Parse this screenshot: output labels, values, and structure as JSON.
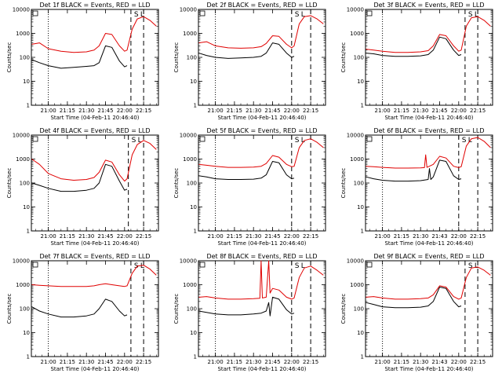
{
  "figure": {
    "xlabel": "Start Time (04-Feb-11 20:46:40)",
    "ylabel": "Counts/sec",
    "series_note": "BLACK = Events, RED = LLD",
    "x_ticks": [
      "21:00",
      "21:15",
      "21:30",
      "21:45",
      "22:00",
      "22:15"
    ],
    "x_ticks_alt": [
      "21:00",
      "21:15",
      "21:30",
      "21:43",
      "22:00",
      "22:15"
    ],
    "y_ticks": [
      "1",
      "10",
      "100",
      "1000",
      "10000"
    ],
    "marker_left": "S",
    "marker_right": "L",
    "colors": {
      "events": "#000000",
      "lld": "#e00000"
    }
  },
  "chart_data": [
    {
      "type": "line",
      "title": "Det 1f BLACK = Events, RED = LLD",
      "log_y": true,
      "ylim": [
        1,
        10000
      ],
      "vlines": {
        "dotted": "21:00",
        "dashed": [
          "22:05",
          "22:15"
        ]
      },
      "series": [
        {
          "name": "Events",
          "color": "#000000",
          "x": [
            "20:47",
            "20:53",
            "21:00",
            "21:10",
            "21:20",
            "21:30",
            "21:36",
            "21:40",
            "21:45",
            "21:50",
            "21:56",
            "22:00",
            "22:02"
          ],
          "y": [
            80,
            60,
            45,
            35,
            38,
            42,
            45,
            60,
            300,
            260,
            70,
            40,
            45
          ]
        },
        {
          "name": "LLD",
          "color": "#e00000",
          "x": [
            "20:47",
            "20:53",
            "21:00",
            "21:10",
            "21:20",
            "21:30",
            "21:36",
            "21:40",
            "21:45",
            "21:50",
            "21:56",
            "22:00",
            "22:02",
            "22:06",
            "22:10",
            "22:15",
            "22:20",
            "22:25"
          ],
          "y": [
            350,
            400,
            230,
            180,
            160,
            170,
            200,
            300,
            1000,
            900,
            300,
            180,
            200,
            1500,
            4000,
            5000,
            3500,
            2000
          ]
        }
      ]
    },
    {
      "type": "line",
      "title": "Det 2f BLACK = Events, RED = LLD",
      "log_y": true,
      "ylim": [
        1,
        10000
      ],
      "vlines": {
        "dotted": "21:00",
        "dashed": [
          "22:00",
          "22:15"
        ]
      },
      "series": [
        {
          "name": "Events",
          "color": "#000000",
          "x": [
            "20:47",
            "20:53",
            "21:00",
            "21:10",
            "21:20",
            "21:30",
            "21:36",
            "21:40",
            "21:45",
            "21:50",
            "21:56",
            "22:00",
            "22:02"
          ],
          "y": [
            150,
            120,
            100,
            90,
            95,
            100,
            110,
            150,
            400,
            350,
            150,
            100,
            110
          ]
        },
        {
          "name": "LLD",
          "color": "#e00000",
          "x": [
            "20:47",
            "20:53",
            "21:00",
            "21:10",
            "21:20",
            "21:30",
            "21:36",
            "21:40",
            "21:45",
            "21:50",
            "21:56",
            "22:00",
            "22:02",
            "22:06",
            "22:10",
            "22:15",
            "22:20",
            "22:25"
          ],
          "y": [
            400,
            450,
            300,
            250,
            240,
            250,
            280,
            380,
            800,
            750,
            350,
            250,
            300,
            2500,
            5000,
            5500,
            4000,
            2500
          ]
        }
      ]
    },
    {
      "type": "line",
      "title": "Det 3f BLACK = Events, RED = LLD",
      "log_y": true,
      "ylim": [
        1,
        10000
      ],
      "vlines": {
        "dotted": "21:00",
        "dashed": [
          "22:05",
          "22:15"
        ]
      },
      "series": [
        {
          "name": "Events",
          "color": "#000000",
          "x": [
            "20:47",
            "20:53",
            "21:00",
            "21:10",
            "21:20",
            "21:30",
            "21:36",
            "21:40",
            "21:45",
            "21:50",
            "21:56",
            "22:00",
            "22:02"
          ],
          "y": [
            150,
            140,
            120,
            110,
            110,
            115,
            130,
            200,
            700,
            600,
            200,
            120,
            130
          ]
        },
        {
          "name": "LLD",
          "color": "#e00000",
          "x": [
            "20:47",
            "20:53",
            "21:00",
            "21:10",
            "21:20",
            "21:30",
            "21:36",
            "21:40",
            "21:45",
            "21:50",
            "21:56",
            "22:00",
            "22:02",
            "22:06",
            "22:10",
            "22:15",
            "22:20",
            "22:25"
          ],
          "y": [
            220,
            200,
            180,
            160,
            160,
            170,
            190,
            300,
            900,
            800,
            300,
            180,
            200,
            2000,
            4500,
            5000,
            3500,
            2000
          ]
        }
      ]
    },
    {
      "type": "line",
      "title": "Det 4f BLACK = Events, RED = LLD",
      "log_y": true,
      "ylim": [
        1,
        10000
      ],
      "vlines": {
        "dotted": "21:00",
        "dashed": [
          "22:03",
          "22:15"
        ]
      },
      "series": [
        {
          "name": "Events",
          "color": "#000000",
          "x": [
            "20:47",
            "20:53",
            "21:00",
            "21:10",
            "21:20",
            "21:30",
            "21:36",
            "21:40",
            "21:45",
            "21:50",
            "21:56",
            "22:00",
            "22:02"
          ],
          "y": [
            100,
            80,
            60,
            45,
            45,
            50,
            60,
            100,
            600,
            500,
            120,
            50,
            55
          ]
        },
        {
          "name": "LLD",
          "color": "#e00000",
          "x": [
            "20:47",
            "20:53",
            "21:00",
            "21:10",
            "21:20",
            "21:30",
            "21:36",
            "21:40",
            "21:45",
            "21:50",
            "21:56",
            "22:00",
            "22:02",
            "22:06",
            "22:10",
            "22:15",
            "22:20",
            "22:25"
          ],
          "y": [
            1000,
            600,
            250,
            150,
            130,
            140,
            170,
            280,
            900,
            750,
            220,
            120,
            150,
            1500,
            4000,
            6000,
            4500,
            2500
          ]
        }
      ]
    },
    {
      "type": "line",
      "title": "Det 5f BLACK = Events, RED = LLD",
      "log_y": true,
      "ylim": [
        1,
        10000
      ],
      "vlines": {
        "dotted": "21:00",
        "dashed": [
          "22:00",
          "22:15"
        ]
      },
      "series": [
        {
          "name": "Events",
          "color": "#000000",
          "x": [
            "20:47",
            "20:53",
            "21:00",
            "21:10",
            "21:20",
            "21:30",
            "21:36",
            "21:40",
            "21:45",
            "21:50",
            "21:56",
            "22:00",
            "22:02"
          ],
          "y": [
            200,
            180,
            150,
            140,
            140,
            145,
            160,
            220,
            800,
            700,
            220,
            150,
            160
          ]
        },
        {
          "name": "LLD",
          "color": "#e00000",
          "x": [
            "20:47",
            "20:53",
            "21:00",
            "21:10",
            "21:20",
            "21:30",
            "21:36",
            "21:40",
            "21:45",
            "21:50",
            "21:56",
            "22:00",
            "22:02",
            "22:06",
            "22:10",
            "22:15",
            "22:20",
            "22:25"
          ],
          "y": [
            600,
            550,
            500,
            450,
            450,
            460,
            500,
            650,
            1400,
            1200,
            600,
            480,
            500,
            3000,
            6000,
            7000,
            5000,
            3000
          ]
        }
      ]
    },
    {
      "type": "line",
      "title": "Det 6f BLACK = Events, RED = LLD",
      "log_y": true,
      "ylim": [
        1,
        10000
      ],
      "vlines": {
        "dotted": "21:00",
        "dashed": [
          "22:00",
          "22:15"
        ]
      },
      "series": [
        {
          "name": "Events",
          "color": "#000000",
          "x": [
            "20:47",
            "20:53",
            "21:00",
            "21:10",
            "21:20",
            "21:30",
            "21:36",
            "21:37",
            "21:38",
            "21:40",
            "21:45",
            "21:50",
            "21:56",
            "22:00",
            "22:02"
          ],
          "y": [
            180,
            150,
            130,
            120,
            120,
            125,
            140,
            400,
            140,
            180,
            900,
            800,
            200,
            140,
            150
          ]
        },
        {
          "name": "LLD",
          "color": "#e00000",
          "x": [
            "20:47",
            "20:53",
            "21:00",
            "21:10",
            "21:20",
            "21:30",
            "21:33",
            "21:34",
            "21:35",
            "21:40",
            "21:45",
            "21:50",
            "21:56",
            "22:00",
            "22:02",
            "22:06",
            "22:10",
            "22:15",
            "22:20",
            "22:25"
          ],
          "y": [
            500,
            480,
            450,
            420,
            420,
            430,
            440,
            1500,
            450,
            600,
            1300,
            1100,
            500,
            440,
            480,
            3500,
            7000,
            8000,
            5500,
            3000
          ]
        }
      ]
    },
    {
      "type": "line",
      "title": "Det 7f BLACK = Events, RED = LLD",
      "log_y": true,
      "ylim": [
        1,
        10000
      ],
      "vlines": {
        "dotted": "21:00",
        "dashed": [
          "22:05",
          "22:15"
        ]
      },
      "series": [
        {
          "name": "Events",
          "color": "#000000",
          "x": [
            "20:47",
            "20:53",
            "21:00",
            "21:10",
            "21:20",
            "21:30",
            "21:36",
            "21:40",
            "21:45",
            "21:50",
            "21:56",
            "22:00",
            "22:02"
          ],
          "y": [
            120,
            80,
            60,
            45,
            45,
            50,
            60,
            100,
            250,
            200,
            80,
            50,
            55
          ]
        },
        {
          "name": "LLD",
          "color": "#e00000",
          "x": [
            "20:47",
            "20:53",
            "21:00",
            "21:10",
            "21:20",
            "21:30",
            "21:36",
            "21:40",
            "21:45",
            "21:50",
            "21:56",
            "22:00",
            "22:02",
            "22:06",
            "22:10",
            "22:15",
            "22:20",
            "22:25"
          ],
          "y": [
            1000,
            950,
            900,
            850,
            850,
            850,
            900,
            1000,
            1100,
            1000,
            900,
            850,
            900,
            3000,
            6000,
            6500,
            4500,
            2500
          ]
        }
      ]
    },
    {
      "type": "line",
      "title": "Det 8f BLACK = Events, RED = LLD",
      "log_y": true,
      "ylim": [
        1,
        10000
      ],
      "vlines": {
        "dotted": "21:00",
        "dashed": [
          "22:00",
          "22:15"
        ]
      },
      "series": [
        {
          "name": "Events",
          "color": "#000000",
          "x": [
            "20:47",
            "20:53",
            "21:00",
            "21:10",
            "21:20",
            "21:30",
            "21:36",
            "21:40",
            "21:42",
            "21:43",
            "21:45",
            "21:50",
            "21:56",
            "22:00",
            "22:02"
          ],
          "y": [
            80,
            70,
            60,
            55,
            55,
            60,
            65,
            80,
            180,
            50,
            300,
            250,
            90,
            60,
            65
          ]
        },
        {
          "name": "LLD",
          "color": "#e00000",
          "x": [
            "20:47",
            "20:53",
            "21:00",
            "21:10",
            "21:20",
            "21:30",
            "21:35",
            "21:36",
            "21:37",
            "21:40",
            "21:42",
            "21:43",
            "21:45",
            "21:50",
            "21:56",
            "22:00",
            "22:02",
            "22:06",
            "22:10",
            "22:15",
            "22:20",
            "22:25"
          ],
          "y": [
            300,
            320,
            280,
            250,
            250,
            260,
            270,
            10000,
            280,
            300,
            10000,
            450,
            700,
            600,
            300,
            250,
            280,
            2000,
            5000,
            6000,
            4000,
            2500
          ]
        }
      ]
    },
    {
      "type": "line",
      "title": "Det 9f BLACK = Events, RED = LLD",
      "log_y": true,
      "ylim": [
        1,
        10000
      ],
      "vlines": {
        "dotted": "21:00",
        "dashed": [
          "22:05",
          "22:15"
        ]
      },
      "series": [
        {
          "name": "Events",
          "color": "#000000",
          "x": [
            "20:47",
            "20:53",
            "21:00",
            "21:10",
            "21:20",
            "21:30",
            "21:36",
            "21:40",
            "21:45",
            "21:50",
            "21:56",
            "22:00",
            "22:02"
          ],
          "y": [
            180,
            150,
            120,
            110,
            110,
            115,
            130,
            200,
            800,
            700,
            200,
            120,
            130
          ]
        },
        {
          "name": "LLD",
          "color": "#e00000",
          "x": [
            "20:47",
            "20:53",
            "21:00",
            "21:10",
            "21:20",
            "21:30",
            "21:36",
            "21:40",
            "21:45",
            "21:50",
            "21:56",
            "22:00",
            "22:02",
            "22:06",
            "22:10",
            "22:15",
            "22:20",
            "22:25"
          ],
          "y": [
            300,
            320,
            280,
            250,
            250,
            260,
            280,
            380,
            900,
            800,
            320,
            250,
            280,
            2000,
            5000,
            5500,
            4000,
            2500
          ]
        }
      ]
    }
  ]
}
